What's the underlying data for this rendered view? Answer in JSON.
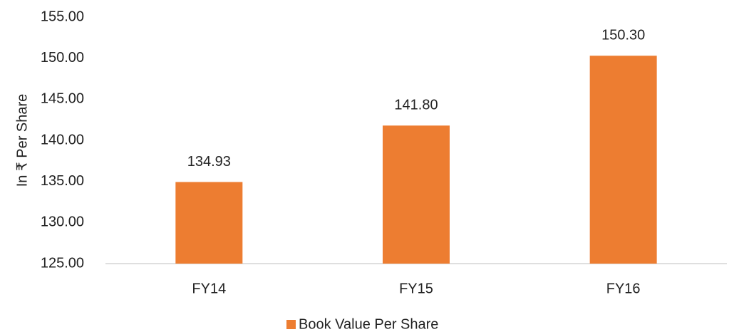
{
  "chart_data": {
    "type": "bar",
    "y_label": "In ₹ Per Share",
    "categories": [
      "FY14",
      "FY15",
      "FY16"
    ],
    "series": [
      {
        "name": "Book Value Per Share",
        "color": "#ed7d31",
        "values": [
          134.93,
          141.8,
          150.3
        ],
        "value_labels": [
          "134.93",
          "141.80",
          "150.30"
        ]
      }
    ],
    "ylim": [
      125,
      155
    ],
    "yticks": [
      {
        "value": 125,
        "label": "125.00"
      },
      {
        "value": 130,
        "label": "130.00"
      },
      {
        "value": 135,
        "label": "135.00"
      },
      {
        "value": 140,
        "label": "140.00"
      },
      {
        "value": 145,
        "label": "145.00"
      },
      {
        "value": 150,
        "label": "150.00"
      },
      {
        "value": 155,
        "label": "155.00"
      }
    ],
    "grid": false,
    "legend": "bottom"
  }
}
